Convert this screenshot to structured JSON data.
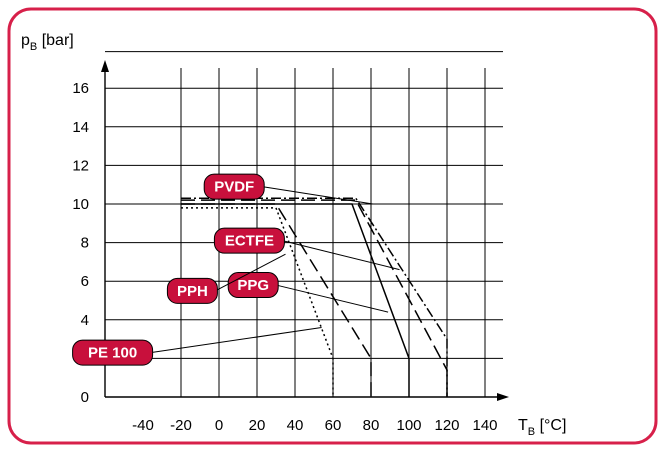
{
  "theme": {
    "frame": "#d7204a",
    "badge": "#c8103c",
    "badge_text": "#ffffff",
    "ink": "#000000"
  },
  "chart_data": {
    "type": "line",
    "ylabel_main": "p",
    "ylabel_sub": "B",
    "ylabel_unit": " [bar]",
    "xlabel_main": "T",
    "xlabel_sub": "B",
    "xlabel_unit": " [°C]",
    "xlim": [
      -60,
      160
    ],
    "ylim": [
      0,
      18
    ],
    "xticks": [
      -40,
      -20,
      0,
      20,
      40,
      60,
      80,
      100,
      120,
      140
    ],
    "yticks": [
      0,
      2,
      4,
      6,
      8,
      10,
      12,
      14,
      16
    ],
    "x_grid_from": -20,
    "grid": true,
    "series": [
      {
        "name": "PE 100",
        "dash": "2,3",
        "x": [
          -20,
          30,
          60,
          60
        ],
        "y": [
          9.8,
          9.8,
          2,
          0
        ]
      },
      {
        "name": "PPH",
        "dash": "14,6",
        "x": [
          -20,
          30,
          80,
          80
        ],
        "y": [
          10.0,
          10.0,
          2,
          0
        ]
      },
      {
        "name": "PPG",
        "dash": "",
        "x": [
          -20,
          70,
          100,
          100
        ],
        "y": [
          10.0,
          10.0,
          2,
          0
        ]
      },
      {
        "name": "PVDF",
        "dash": "14,6",
        "x": [
          -20,
          72,
          120,
          120
        ],
        "y": [
          10.2,
          10.2,
          1.4,
          0
        ]
      },
      {
        "name": "ECTFE",
        "dash": "10,3,2,3",
        "x": [
          -20,
          72,
          120,
          120
        ],
        "y": [
          10.3,
          10.3,
          3,
          0
        ]
      }
    ],
    "labels": [
      {
        "text": "PVDF",
        "pos": [
          8,
          10.9
        ],
        "anchor": [
          81,
          10.0
        ]
      },
      {
        "text": "ECTFE",
        "pos": [
          16,
          8.1
        ],
        "anchor": [
          95,
          6.6
        ]
      },
      {
        "text": "PPG",
        "pos": [
          18,
          5.8
        ],
        "anchor": [
          89,
          4.4
        ]
      },
      {
        "text": "PPH",
        "pos": [
          -14,
          5.5
        ],
        "anchor": [
          35,
          7.4
        ]
      },
      {
        "text": "PE 100",
        "pos": [
          -56,
          2.3
        ],
        "anchor": [
          54,
          3.6
        ]
      }
    ]
  }
}
